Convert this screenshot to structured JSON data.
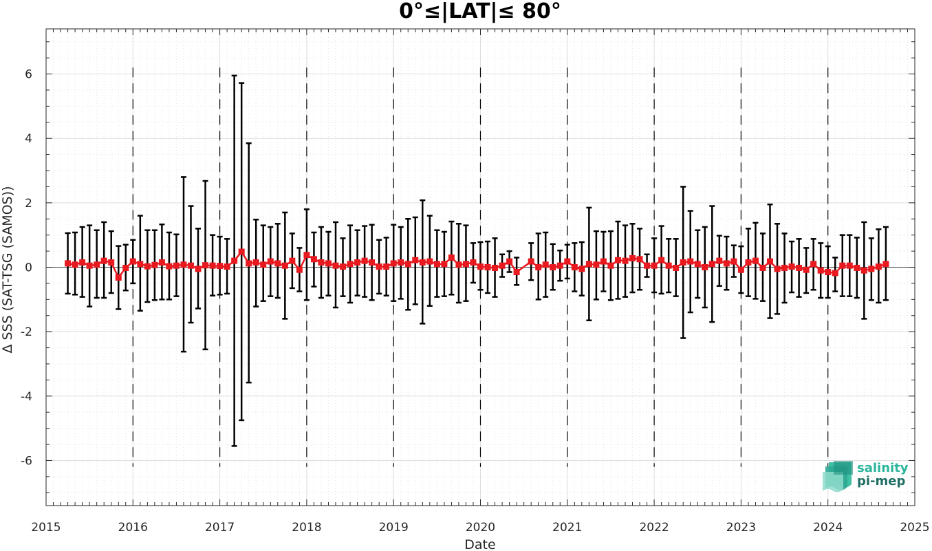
{
  "chart_data": {
    "type": "line",
    "title": "0°≤|LAT|≤ 80°",
    "xlabel": "Date",
    "ylabel": "Δ SSS (SAT-TSG (SAMOS))",
    "xlim": [
      2015,
      2025
    ],
    "ylim": [
      -7.4,
      7.4
    ],
    "x_ticks": [
      "2015",
      "2016",
      "2017",
      "2018",
      "2019",
      "2020",
      "2021",
      "2022",
      "2023",
      "2024",
      "2025"
    ],
    "y_ticks": [
      -6,
      -4,
      -2,
      0,
      2,
      4,
      6
    ],
    "y_tick_labels": [
      "-6",
      "-4",
      "-2",
      "0",
      "2",
      "4",
      "6"
    ],
    "grid": true,
    "year_dividers": [
      2016,
      2017,
      2018,
      2019,
      2020,
      2021,
      2022,
      2023,
      2024
    ],
    "series": [
      {
        "color": "#e8191f",
        "errorbar_color": "#000000",
        "points": [
          {
            "x": "2015-04",
            "y": 0.12,
            "lo": -0.82,
            "hi": 1.06
          },
          {
            "x": "2015-05",
            "y": 0.08,
            "lo": -0.85,
            "hi": 1.08
          },
          {
            "x": "2015-06",
            "y": 0.15,
            "lo": -0.92,
            "hi": 1.25
          },
          {
            "x": "2015-07",
            "y": 0.05,
            "lo": -1.22,
            "hi": 1.3
          },
          {
            "x": "2015-08",
            "y": 0.08,
            "lo": -0.95,
            "hi": 1.15
          },
          {
            "x": "2015-09",
            "y": 0.2,
            "lo": -0.95,
            "hi": 1.4
          },
          {
            "x": "2015-10",
            "y": 0.15,
            "lo": -0.8,
            "hi": 1.12
          },
          {
            "x": "2015-11",
            "y": -0.32,
            "lo": -1.3,
            "hi": 0.66
          },
          {
            "x": "2015-12",
            "y": -0.02,
            "lo": -0.72,
            "hi": 0.7
          },
          {
            "x": "2016-01",
            "y": 0.18,
            "lo": -0.5,
            "hi": 0.85
          },
          {
            "x": "2016-02",
            "y": 0.1,
            "lo": -1.35,
            "hi": 1.6
          },
          {
            "x": "2016-03",
            "y": 0.03,
            "lo": -1.08,
            "hi": 1.15
          },
          {
            "x": "2016-04",
            "y": 0.07,
            "lo": -1.02,
            "hi": 1.15
          },
          {
            "x": "2016-05",
            "y": 0.15,
            "lo": -1.0,
            "hi": 1.33
          },
          {
            "x": "2016-06",
            "y": 0.03,
            "lo": -1.0,
            "hi": 1.08
          },
          {
            "x": "2016-07",
            "y": 0.05,
            "lo": -0.9,
            "hi": 1.02
          },
          {
            "x": "2016-08",
            "y": 0.08,
            "lo": -2.62,
            "hi": 2.8
          },
          {
            "x": "2016-09",
            "y": 0.05,
            "lo": -1.72,
            "hi": 1.9
          },
          {
            "x": "2016-10",
            "y": -0.05,
            "lo": -1.28,
            "hi": 1.2
          },
          {
            "x": "2016-11",
            "y": 0.06,
            "lo": -2.55,
            "hi": 2.68
          },
          {
            "x": "2016-12",
            "y": 0.05,
            "lo": -0.88,
            "hi": 1.0
          },
          {
            "x": "2017-01",
            "y": 0.04,
            "lo": -0.85,
            "hi": 0.95
          },
          {
            "x": "2017-02",
            "y": 0.02,
            "lo": -0.82,
            "hi": 0.88
          },
          {
            "x": "2017-03",
            "y": 0.2,
            "lo": -5.55,
            "hi": 5.95
          },
          {
            "x": "2017-04",
            "y": 0.48,
            "lo": -4.75,
            "hi": 5.72
          },
          {
            "x": "2017-05",
            "y": 0.12,
            "lo": -3.58,
            "hi": 3.85
          },
          {
            "x": "2017-06",
            "y": 0.15,
            "lo": -1.22,
            "hi": 1.48
          },
          {
            "x": "2017-07",
            "y": 0.08,
            "lo": -1.05,
            "hi": 1.3
          },
          {
            "x": "2017-08",
            "y": 0.18,
            "lo": -0.9,
            "hi": 1.25
          },
          {
            "x": "2017-09",
            "y": 0.12,
            "lo": -0.95,
            "hi": 1.35
          },
          {
            "x": "2017-10",
            "y": 0.05,
            "lo": -1.6,
            "hi": 1.7
          },
          {
            "x": "2017-11",
            "y": 0.2,
            "lo": -0.65,
            "hi": 1.05
          },
          {
            "x": "2017-12",
            "y": -0.08,
            "lo": -0.75,
            "hi": 0.6
          },
          {
            "x": "2018-01",
            "y": 0.38,
            "lo": -1.02,
            "hi": 1.8
          },
          {
            "x": "2018-02",
            "y": 0.25,
            "lo": -0.6,
            "hi": 1.08
          },
          {
            "x": "2018-03",
            "y": 0.15,
            "lo": -0.95,
            "hi": 1.25
          },
          {
            "x": "2018-04",
            "y": 0.12,
            "lo": -0.88,
            "hi": 1.1
          },
          {
            "x": "2018-05",
            "y": 0.05,
            "lo": -1.25,
            "hi": 1.4
          },
          {
            "x": "2018-06",
            "y": 0.02,
            "lo": -0.9,
            "hi": 0.9
          },
          {
            "x": "2018-07",
            "y": 0.1,
            "lo": -1.1,
            "hi": 1.3
          },
          {
            "x": "2018-08",
            "y": 0.15,
            "lo": -0.88,
            "hi": 1.15
          },
          {
            "x": "2018-09",
            "y": 0.2,
            "lo": -0.92,
            "hi": 1.28
          },
          {
            "x": "2018-10",
            "y": 0.15,
            "lo": -1.02,
            "hi": 1.32
          },
          {
            "x": "2018-11",
            "y": 0.02,
            "lo": -0.82,
            "hi": 0.85
          },
          {
            "x": "2018-12",
            "y": 0.02,
            "lo": -0.88,
            "hi": 0.92
          },
          {
            "x": "2019-01",
            "y": 0.12,
            "lo": -1.05,
            "hi": 1.32
          },
          {
            "x": "2019-02",
            "y": 0.15,
            "lo": -0.98,
            "hi": 1.25
          },
          {
            "x": "2019-03",
            "y": 0.1,
            "lo": -1.32,
            "hi": 1.5
          },
          {
            "x": "2019-04",
            "y": 0.22,
            "lo": -1.15,
            "hi": 1.55
          },
          {
            "x": "2019-05",
            "y": 0.15,
            "lo": -1.75,
            "hi": 2.08
          },
          {
            "x": "2019-06",
            "y": 0.18,
            "lo": -1.2,
            "hi": 1.6
          },
          {
            "x": "2019-07",
            "y": 0.1,
            "lo": -0.92,
            "hi": 1.15
          },
          {
            "x": "2019-08",
            "y": 0.1,
            "lo": -0.9,
            "hi": 1.1
          },
          {
            "x": "2019-09",
            "y": 0.3,
            "lo": -0.85,
            "hi": 1.42
          },
          {
            "x": "2019-10",
            "y": 0.08,
            "lo": -1.1,
            "hi": 1.35
          },
          {
            "x": "2019-11",
            "y": 0.1,
            "lo": -1.05,
            "hi": 1.3
          },
          {
            "x": "2019-12",
            "y": 0.15,
            "lo": -0.48,
            "hi": 0.75
          },
          {
            "x": "2020-01",
            "y": 0.02,
            "lo": -0.7,
            "hi": 0.78
          },
          {
            "x": "2020-02",
            "y": 0.0,
            "lo": -0.8,
            "hi": 0.8
          },
          {
            "x": "2020-03",
            "y": -0.02,
            "lo": -0.92,
            "hi": 0.9
          },
          {
            "x": "2020-04",
            "y": 0.05,
            "lo": -0.3,
            "hi": 0.4
          },
          {
            "x": "2020-05",
            "y": 0.18,
            "lo": -0.15,
            "hi": 0.5
          },
          {
            "x": "2020-06",
            "y": -0.15,
            "lo": -0.55,
            "hi": 0.3
          },
          {
            "x": "2020-08",
            "y": 0.18,
            "lo": -0.4,
            "hi": 0.75
          },
          {
            "x": "2020-09",
            "y": 0.0,
            "lo": -1.0,
            "hi": 1.05
          },
          {
            "x": "2020-10",
            "y": 0.08,
            "lo": -0.92,
            "hi": 1.08
          },
          {
            "x": "2020-11",
            "y": 0.0,
            "lo": -0.7,
            "hi": 0.72
          },
          {
            "x": "2020-12",
            "y": 0.05,
            "lo": -0.42,
            "hi": 0.52
          },
          {
            "x": "2021-01",
            "y": 0.18,
            "lo": -0.35,
            "hi": 0.7
          },
          {
            "x": "2021-02",
            "y": 0.0,
            "lo": -0.75,
            "hi": 0.75
          },
          {
            "x": "2021-03",
            "y": -0.05,
            "lo": -0.88,
            "hi": 0.78
          },
          {
            "x": "2021-04",
            "y": 0.1,
            "lo": -1.65,
            "hi": 1.85
          },
          {
            "x": "2021-05",
            "y": 0.08,
            "lo": -1.0,
            "hi": 1.12
          },
          {
            "x": "2021-06",
            "y": 0.18,
            "lo": -0.75,
            "hi": 1.1
          },
          {
            "x": "2021-07",
            "y": 0.05,
            "lo": -1.02,
            "hi": 1.12
          },
          {
            "x": "2021-08",
            "y": 0.22,
            "lo": -0.98,
            "hi": 1.42
          },
          {
            "x": "2021-09",
            "y": 0.2,
            "lo": -0.92,
            "hi": 1.3
          },
          {
            "x": "2021-10",
            "y": 0.28,
            "lo": -0.78,
            "hi": 1.35
          },
          {
            "x": "2021-11",
            "y": 0.25,
            "lo": -0.7,
            "hi": 1.2
          },
          {
            "x": "2021-12",
            "y": 0.05,
            "lo": -0.3,
            "hi": 0.4
          },
          {
            "x": "2022-01",
            "y": 0.05,
            "lo": -0.78,
            "hi": 0.9
          },
          {
            "x": "2022-02",
            "y": 0.22,
            "lo": -0.82,
            "hi": 1.28
          },
          {
            "x": "2022-03",
            "y": 0.05,
            "lo": -0.78,
            "hi": 0.88
          },
          {
            "x": "2022-04",
            "y": -0.02,
            "lo": -0.9,
            "hi": 0.88
          },
          {
            "x": "2022-05",
            "y": 0.15,
            "lo": -2.2,
            "hi": 2.5
          },
          {
            "x": "2022-06",
            "y": 0.18,
            "lo": -1.4,
            "hi": 1.75
          },
          {
            "x": "2022-07",
            "y": 0.1,
            "lo": -0.95,
            "hi": 1.15
          },
          {
            "x": "2022-08",
            "y": 0.0,
            "lo": -1.25,
            "hi": 1.25
          },
          {
            "x": "2022-09",
            "y": 0.1,
            "lo": -1.7,
            "hi": 1.9
          },
          {
            "x": "2022-10",
            "y": 0.2,
            "lo": -0.58,
            "hi": 0.98
          },
          {
            "x": "2022-11",
            "y": 0.12,
            "lo": -0.7,
            "hi": 0.95
          },
          {
            "x": "2022-12",
            "y": 0.18,
            "lo": -0.3,
            "hi": 0.68
          },
          {
            "x": "2023-01",
            "y": -0.08,
            "lo": -0.8,
            "hi": 0.65
          },
          {
            "x": "2023-02",
            "y": 0.15,
            "lo": -0.9,
            "hi": 1.2
          },
          {
            "x": "2023-03",
            "y": 0.2,
            "lo": -0.98,
            "hi": 1.38
          },
          {
            "x": "2023-04",
            "y": -0.02,
            "lo": -1.05,
            "hi": 1.05
          },
          {
            "x": "2023-05",
            "y": 0.18,
            "lo": -1.58,
            "hi": 1.95
          },
          {
            "x": "2023-06",
            "y": -0.05,
            "lo": -1.45,
            "hi": 1.35
          },
          {
            "x": "2023-07",
            "y": -0.02,
            "lo": -1.1,
            "hi": 1.05
          },
          {
            "x": "2023-08",
            "y": 0.02,
            "lo": -0.78,
            "hi": 0.8
          },
          {
            "x": "2023-09",
            "y": -0.02,
            "lo": -0.92,
            "hi": 0.88
          },
          {
            "x": "2023-10",
            "y": -0.08,
            "lo": -0.8,
            "hi": 0.6
          },
          {
            "x": "2023-11",
            "y": 0.1,
            "lo": -0.7,
            "hi": 0.88
          },
          {
            "x": "2023-12",
            "y": -0.1,
            "lo": -0.95,
            "hi": 0.75
          },
          {
            "x": "2024-01",
            "y": -0.15,
            "lo": -0.95,
            "hi": 0.65
          },
          {
            "x": "2024-02",
            "y": -0.18,
            "lo": -0.75,
            "hi": 0.3
          },
          {
            "x": "2024-03",
            "y": 0.05,
            "lo": -0.9,
            "hi": 1.0
          },
          {
            "x": "2024-04",
            "y": 0.05,
            "lo": -0.9,
            "hi": 1.0
          },
          {
            "x": "2024-05",
            "y": -0.02,
            "lo": -0.95,
            "hi": 0.92
          },
          {
            "x": "2024-06",
            "y": -0.1,
            "lo": -1.6,
            "hi": 1.4
          },
          {
            "x": "2024-07",
            "y": -0.05,
            "lo": -1.02,
            "hi": 0.9
          },
          {
            "x": "2024-08",
            "y": 0.02,
            "lo": -1.1,
            "hi": 1.18
          },
          {
            "x": "2024-09",
            "y": 0.1,
            "lo": -1.02,
            "hi": 1.25
          }
        ]
      }
    ]
  },
  "logo": {
    "line1": "salinity",
    "line2": "pi-mep",
    "color1": "#29b59a",
    "color2": "#1d6e63"
  }
}
